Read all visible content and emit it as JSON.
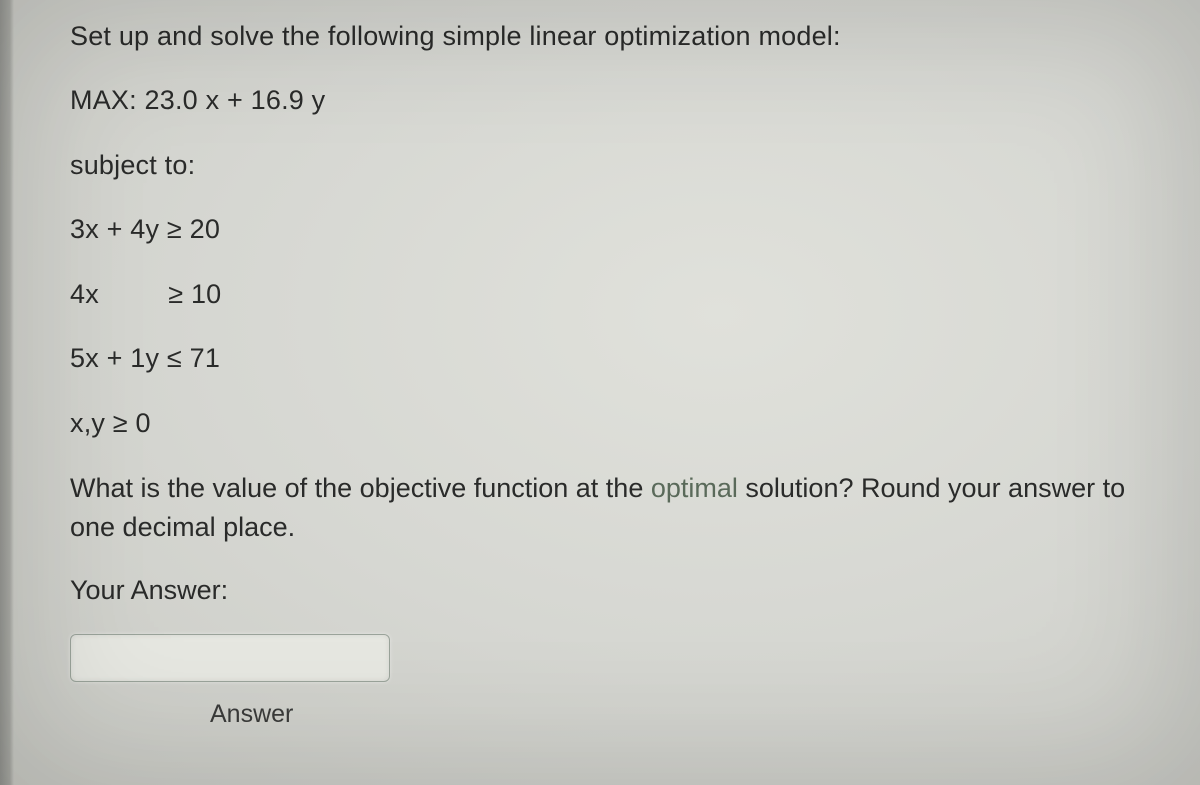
{
  "font": {
    "family": "Helvetica, Arial, sans-serif",
    "base_size_pt": 20,
    "color": "#2a2b2a"
  },
  "background_color": "#d6d7d2",
  "problem": {
    "intro": "Set up and solve the following simple linear optimization model:",
    "objective": "MAX: 23.0 x + 16.9 y",
    "subject_to_label": "subject to:",
    "constraints": [
      "3x + 4y ≥ 20",
      "4x         ≥ 10",
      "5x + 1y ≤ 71",
      "x,y ≥ 0"
    ],
    "question_prefix": "What is the value of the objective function at the ",
    "question_optimal_word": "optimal",
    "question_suffix": " solution? Round your answer to one decimal place."
  },
  "answer_section": {
    "your_answer_label": "Your Answer:",
    "input_value": "",
    "input_placeholder": "",
    "submit_label": "Answer"
  },
  "colors": {
    "text": "#2a2b2a",
    "optimal_text": "#5a6a5a",
    "input_border": "#9aa39a",
    "input_bg": "#e6e7e1"
  }
}
